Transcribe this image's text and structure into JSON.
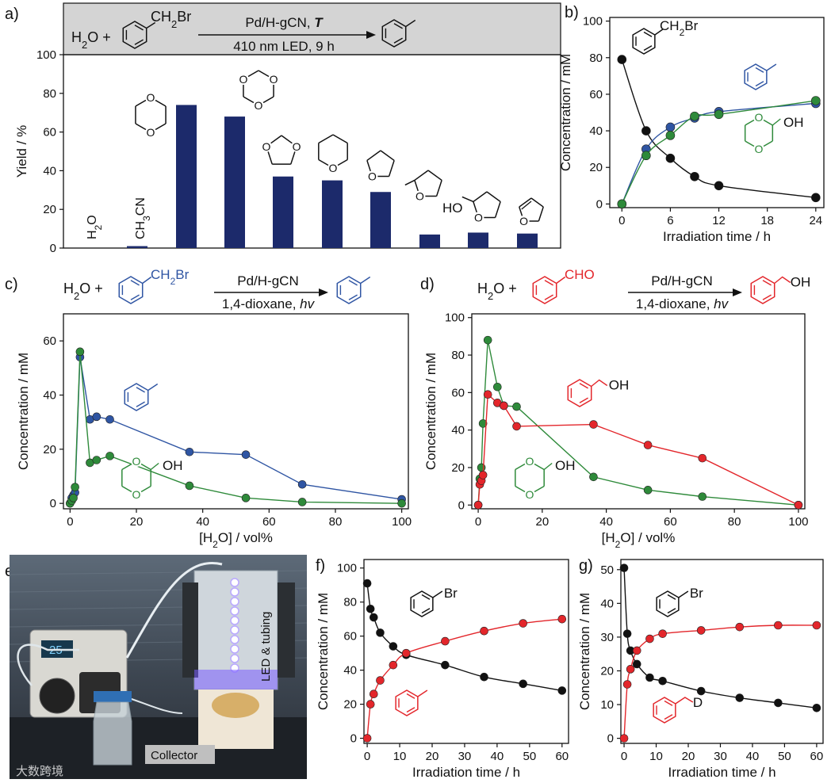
{
  "colors": {
    "navy": "#1c2a6b",
    "blue": "#2f55a3",
    "green": "#2e8a3a",
    "red": "#e3262b",
    "black": "#111111",
    "header_gray": "#d4d4d4"
  },
  "panel_labels": {
    "a": "a)",
    "b": "b)",
    "c": "c)",
    "d": "d)",
    "e": "e)",
    "f": "f)",
    "g": "g)"
  },
  "scheme_a": {
    "reactant_left": "H2O +",
    "reagent_prefix": "CH2Br",
    "catalyst": "Pd/H-gCN, ",
    "catalyst_var": "T",
    "conditions": "410 nm LED, 9 h"
  },
  "scheme_c": {
    "reactant_left": "H2O +",
    "reagent": "CH2Br",
    "catalyst": "Pd/H-gCN",
    "conditions_prefix": "1,4-dioxane, ",
    "conditions_var": "hv"
  },
  "scheme_d": {
    "reactant_left": "H2O +",
    "reagent": "CHO",
    "catalyst": "Pd/H-gCN",
    "conditions_prefix": "1,4-dioxane, ",
    "conditions_var": "hv"
  },
  "molecule_labels": {
    "benzylbromide": "CH2Br",
    "benzylbromide_short": "Br",
    "oh": "OH",
    "ho": "HO",
    "d": "D",
    "h2o": "H2O",
    "ch3cn": "CH3CN"
  },
  "photo_e": {
    "led_label": "LED & tubing",
    "collector_label": "Collector",
    "display_value": "25",
    "watermark": "大数跨境"
  },
  "chart_data": [
    {
      "id": "a",
      "type": "bar",
      "categories": [
        "H2O",
        "CH3CN",
        "1,4-dioxane",
        "1,3,5-trioxane",
        "1,3-dioxolane",
        "tetrahydropyran",
        "tetrahydrofuran",
        "2-methyltetrahydrofuran",
        "tetrahydrofurfuryl alcohol",
        "2,3-dihydrofuran"
      ],
      "values": [
        0,
        1,
        74,
        68,
        37,
        35,
        29,
        7,
        8,
        7.5
      ],
      "xlabel": "",
      "ylabel": "Yield / %",
      "ylim": [
        0,
        100
      ],
      "yticks": [
        0,
        20,
        40,
        60,
        80,
        100
      ]
    },
    {
      "id": "b",
      "type": "scatter",
      "xlabel": "Irradiation time / h",
      "ylabel": "Concentration / mM",
      "xlim": [
        -1.5,
        25
      ],
      "ylim": [
        -2,
        102
      ],
      "xticks": [
        0,
        6,
        12,
        18,
        24
      ],
      "yticks": [
        0,
        20,
        40,
        60,
        80,
        100
      ],
      "series": [
        {
          "color": "black",
          "x": [
            0,
            3,
            6,
            9,
            12,
            24
          ],
          "y": [
            79,
            40,
            25,
            15,
            10,
            3.5
          ]
        },
        {
          "color": "blue",
          "x": [
            0,
            3,
            6,
            9,
            12,
            24
          ],
          "y": [
            0,
            30,
            42,
            47,
            50.5,
            55
          ]
        },
        {
          "color": "green",
          "x": [
            0,
            3,
            6,
            9,
            12,
            24
          ],
          "y": [
            0,
            26.5,
            37.5,
            48,
            49,
            56.5
          ]
        }
      ]
    },
    {
      "id": "c",
      "type": "line",
      "xlabel": "[H2O] / vol%",
      "ylabel": "Concentration / mM",
      "xlim": [
        -2,
        102
      ],
      "ylim": [
        -2,
        70
      ],
      "xticks": [
        0,
        20,
        40,
        60,
        80,
        100
      ],
      "yticks": [
        0,
        20,
        40,
        60
      ],
      "series": [
        {
          "color": "blue",
          "x": [
            0,
            0.5,
            1,
            1.5,
            3,
            6,
            8,
            12,
            36,
            53,
            70,
            100
          ],
          "y": [
            0,
            2,
            3,
            4,
            54,
            31,
            32,
            31,
            19,
            18,
            7,
            1.5
          ]
        },
        {
          "color": "green",
          "x": [
            0,
            0.5,
            1,
            1.5,
            3,
            6,
            8,
            12,
            36,
            53,
            70,
            100
          ],
          "y": [
            0,
            1,
            2,
            6,
            56,
            15,
            16,
            17.5,
            6.5,
            2,
            0.5,
            0
          ]
        }
      ]
    },
    {
      "id": "d",
      "type": "line",
      "xlabel": "[H2O] / vol%",
      "ylabel": "Concentration / mM",
      "xlim": [
        -2,
        102
      ],
      "ylim": [
        -2,
        102
      ],
      "xticks": [
        0,
        20,
        40,
        60,
        80,
        100
      ],
      "yticks": [
        0,
        20,
        40,
        60,
        80,
        100
      ],
      "series": [
        {
          "color": "green",
          "x": [
            0,
            0.5,
            1,
            1.5,
            3,
            6,
            8,
            12,
            36,
            53,
            70,
            100
          ],
          "y": [
            0,
            14,
            20,
            43.5,
            88,
            63,
            53,
            52.5,
            15,
            8,
            4.5,
            0
          ]
        },
        {
          "color": "red",
          "x": [
            0,
            0.5,
            1,
            1.5,
            3,
            6,
            8,
            12,
            36,
            53,
            70,
            100
          ],
          "y": [
            0,
            11,
            13,
            16,
            59,
            54.5,
            53,
            42,
            43,
            32,
            25,
            0
          ]
        }
      ]
    },
    {
      "id": "f",
      "type": "scatter",
      "xlabel": "Irradiation time / h",
      "ylabel": "Concentration / mM",
      "xlim": [
        -1,
        62
      ],
      "ylim": [
        -3,
        105
      ],
      "xticks": [
        0,
        10,
        20,
        30,
        40,
        50,
        60
      ],
      "yticks": [
        0,
        20,
        40,
        60,
        80,
        100
      ],
      "series": [
        {
          "color": "black",
          "x": [
            0,
            1,
            2,
            4,
            8,
            12,
            24,
            36,
            48,
            60
          ],
          "y": [
            91,
            76,
            71,
            62,
            54,
            49,
            43,
            36,
            32,
            28
          ]
        },
        {
          "color": "red",
          "x": [
            0,
            1,
            2,
            4,
            8,
            12,
            24,
            36,
            48,
            60
          ],
          "y": [
            0,
            20,
            26,
            34,
            43,
            50,
            57,
            63,
            67.5,
            70
          ]
        }
      ]
    },
    {
      "id": "g",
      "type": "scatter",
      "xlabel": "Irradiation time / h",
      "ylabel": "Concentration / mM",
      "xlim": [
        -1,
        62
      ],
      "ylim": [
        -1.5,
        53
      ],
      "xticks": [
        0,
        10,
        20,
        30,
        40,
        50,
        60
      ],
      "yticks": [
        0,
        10,
        20,
        30,
        40,
        50
      ],
      "series": [
        {
          "color": "black",
          "x": [
            0,
            1,
            2,
            4,
            8,
            12,
            24,
            36,
            48,
            60
          ],
          "y": [
            50.5,
            31,
            26,
            22,
            18,
            17,
            14,
            12,
            10.5,
            9
          ]
        },
        {
          "color": "red",
          "x": [
            0,
            1,
            2,
            4,
            8,
            12,
            24,
            36,
            48,
            60
          ],
          "y": [
            0,
            16,
            20.5,
            26,
            29.5,
            31,
            32,
            33,
            33.5,
            33.5
          ]
        }
      ]
    }
  ]
}
